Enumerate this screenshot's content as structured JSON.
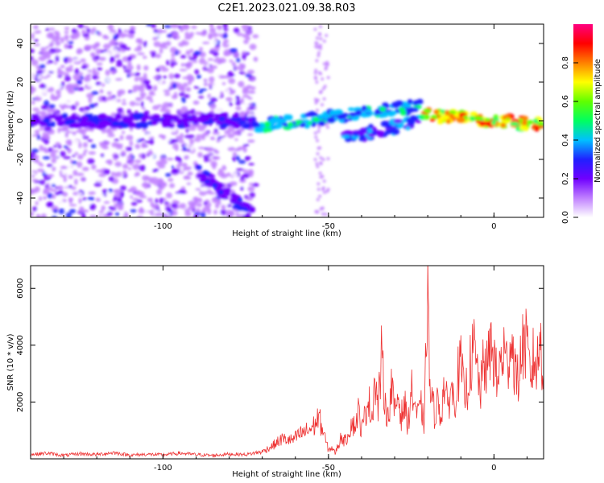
{
  "chart_data": [
    {
      "type": "heatmap",
      "title": "C2E1.2023.021.09.38.R03",
      "xlabel": "Height of straight line (km)",
      "ylabel": "Frequency (Hz)",
      "xlim": [
        -140,
        15
      ],
      "ylim": [
        -50,
        50
      ],
      "xticks": [
        -100,
        -50,
        0
      ],
      "yticks": [
        -40,
        -20,
        0,
        20,
        40
      ],
      "colorbar": {
        "label": "Normalized spectral amplitude",
        "range": [
          0,
          1
        ],
        "ticks": [
          "0.0",
          "0.2",
          "0.4",
          "0.6",
          "0.8"
        ],
        "colors": [
          "#ffffff",
          "#c080ff",
          "#7000ff",
          "#2020ff",
          "#00c0ff",
          "#00ff60",
          "#60ff00",
          "#ffff00",
          "#ff8000",
          "#ff0000",
          "#ff0080"
        ]
      },
      "features": [
        {
          "x": [
            -140,
            -72
          ],
          "freq_center": 0,
          "amplitude": 0.3
        },
        {
          "x": [
            -72,
            -22
          ],
          "freq_center_start": -3,
          "freq_center_end": 8,
          "amplitude": 0.5
        },
        {
          "x": [
            -45,
            -22
          ],
          "freq_center_start": -9,
          "freq_center_end": 0,
          "amplitude": 0.4
        },
        {
          "x": [
            -22,
            15
          ],
          "freq_center_start": 3,
          "freq_center_end": -2,
          "amplitude": 0.95
        },
        {
          "x": [
            -90,
            -72
          ],
          "freq_center_start": -25,
          "freq_center_end": -50,
          "amplitude": 0.3
        }
      ]
    },
    {
      "type": "line",
      "xlabel": "Height of straight line (km)",
      "ylabel": "SNR (10 * v/v)",
      "xlim": [
        -140,
        15
      ],
      "ylim": [
        0,
        6800
      ],
      "xticks": [
        -100,
        -50,
        0
      ],
      "yticks": [
        2000,
        4000,
        6000
      ],
      "color": "#ee3333",
      "series": [
        {
          "x": [
            -140,
            -135,
            -130,
            -125,
            -120,
            -115,
            -110,
            -105,
            -100,
            -95,
            -90,
            -85,
            -80,
            -75,
            -70,
            -67,
            -64,
            -61,
            -58,
            -56,
            -54,
            -53,
            -52,
            -51,
            -50,
            -49,
            -48,
            -47,
            -46,
            -45,
            -44,
            -43,
            -42,
            -41,
            -40,
            -39,
            -38,
            -37,
            -36,
            -35,
            -34,
            -33,
            -32,
            -31,
            -30,
            -29,
            -28,
            -27,
            -26,
            -25,
            -24,
            -23,
            -22,
            -21,
            -20.5,
            -20,
            -19.5,
            -19,
            -18,
            -17,
            -16,
            -15,
            -14,
            -13,
            -12,
            -11,
            -10,
            -9,
            -8,
            -7,
            -6,
            -5,
            -4,
            -3,
            -2,
            -1,
            0,
            1,
            2,
            3,
            4,
            5,
            6,
            7,
            8,
            9,
            10,
            11,
            12,
            13,
            14,
            15
          ],
          "y": [
            150,
            200,
            120,
            180,
            150,
            220,
            130,
            160,
            140,
            200,
            150,
            120,
            170,
            150,
            250,
            450,
            700,
            650,
            900,
            1000,
            1200,
            1500,
            1100,
            700,
            300,
            400,
            200,
            500,
            800,
            600,
            900,
            1300,
            1100,
            1700,
            1000,
            1500,
            2200,
            1400,
            2800,
            1800,
            3500,
            2200,
            1400,
            2600,
            1600,
            2300,
            1500,
            1900,
            1200,
            2400,
            2000,
            1500,
            1800,
            1200,
            4000,
            6750,
            2800,
            2200,
            1600,
            2000,
            1500,
            2700,
            1700,
            2600,
            1900,
            2900,
            3300,
            2200,
            2600,
            3400,
            3800,
            3000,
            2400,
            3500,
            3100,
            4000,
            3600,
            2600,
            3400,
            3800,
            3200,
            4300,
            3600,
            2600,
            3400,
            4200,
            3800,
            2800,
            3600,
            3200,
            4200,
            3000
          ]
        }
      ]
    }
  ]
}
